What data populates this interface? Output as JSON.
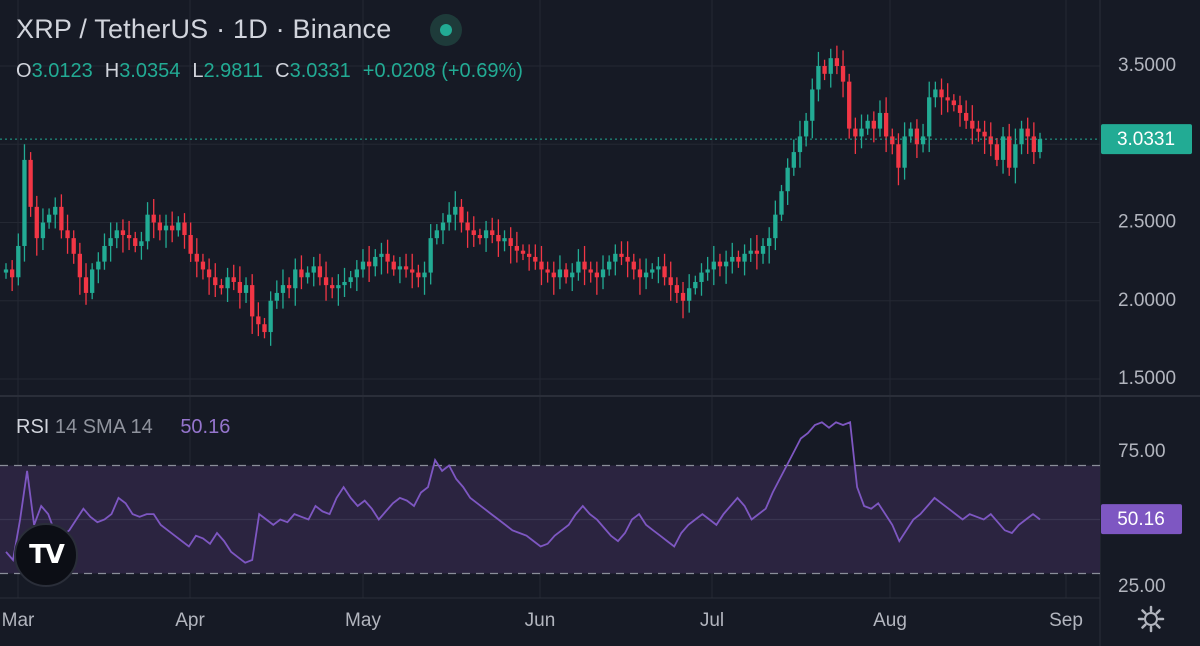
{
  "header": {
    "title": "XRP / TetherUS · 1D · Binance",
    "open_label": "O",
    "open": "3.0123",
    "high_label": "H",
    "high": "3.0354",
    "low_label": "L",
    "low": "2.9811",
    "close_label": "C",
    "close": "3.0331",
    "change": "+0.0208 (+0.69%)"
  },
  "price_badge": "3.0331",
  "rsi": {
    "name": "RSI",
    "params": "14 SMA 14",
    "value": "50.16",
    "badge": "50.16"
  },
  "icons": {
    "logo": "tradingview-logo",
    "settings": "gear-icon"
  },
  "logo_text": "TV",
  "colors": {
    "background": "#161a25",
    "up": "#22ab94",
    "down": "#f23645",
    "rsi_line": "#7e57c2",
    "rsi_band": "#2b2440",
    "grid": "#242833"
  },
  "chart_data": [
    {
      "type": "candlestick",
      "title": "XRP / TetherUS · 1D · Binance",
      "y_ticks": [
        "3.5000",
        "3.0000",
        "2.5000",
        "2.0000",
        "1.5000"
      ],
      "ylim": [
        1.45,
        3.75
      ],
      "x_ticks": [
        "Mar",
        "Apr",
        "May",
        "Jun",
        "Jul",
        "Aug",
        "Sep"
      ],
      "last_price": 3.0331,
      "grid": true,
      "close_series": [
        2.2,
        2.15,
        2.35,
        2.9,
        2.6,
        2.4,
        2.5,
        2.55,
        2.6,
        2.45,
        2.4,
        2.3,
        2.15,
        2.05,
        2.2,
        2.25,
        2.35,
        2.4,
        2.45,
        2.42,
        2.4,
        2.35,
        2.38,
        2.55,
        2.5,
        2.45,
        2.48,
        2.45,
        2.5,
        2.42,
        2.3,
        2.25,
        2.2,
        2.15,
        2.1,
        2.08,
        2.15,
        2.12,
        2.05,
        2.1,
        1.9,
        1.85,
        1.8,
        2.0,
        2.05,
        2.1,
        2.08,
        2.2,
        2.15,
        2.18,
        2.22,
        2.15,
        2.1,
        2.08,
        2.1,
        2.12,
        2.15,
        2.2,
        2.25,
        2.22,
        2.28,
        2.3,
        2.25,
        2.2,
        2.22,
        2.2,
        2.18,
        2.15,
        2.18,
        2.4,
        2.45,
        2.5,
        2.55,
        2.6,
        2.5,
        2.45,
        2.42,
        2.4,
        2.45,
        2.42,
        2.38,
        2.4,
        2.35,
        2.32,
        2.3,
        2.28,
        2.25,
        2.2,
        2.18,
        2.15,
        2.2,
        2.15,
        2.18,
        2.25,
        2.2,
        2.18,
        2.15,
        2.2,
        2.25,
        2.3,
        2.28,
        2.25,
        2.2,
        2.15,
        2.18,
        2.2,
        2.22,
        2.15,
        2.1,
        2.05,
        2.0,
        2.08,
        2.12,
        2.18,
        2.2,
        2.25,
        2.22,
        2.25,
        2.28,
        2.25,
        2.3,
        2.32,
        2.3,
        2.35,
        2.4,
        2.55,
        2.7,
        2.85,
        2.95,
        3.05,
        3.15,
        3.35,
        3.5,
        3.45,
        3.55,
        3.5,
        3.4,
        3.1,
        3.05,
        3.1,
        3.15,
        3.1,
        3.2,
        3.05,
        3.0,
        2.85,
        3.05,
        3.1,
        3.0,
        3.05,
        3.3,
        3.35,
        3.3,
        3.28,
        3.25,
        3.2,
        3.15,
        3.1,
        3.08,
        3.05,
        3.0,
        2.9,
        3.05,
        2.85,
        3.0,
        3.1,
        3.05,
        2.95,
        3.0331
      ]
    },
    {
      "type": "line",
      "series": [
        {
          "name": "RSI",
          "values": [
            38,
            35,
            50,
            68,
            48,
            55,
            52,
            45,
            44,
            46,
            50,
            54,
            51,
            49,
            50,
            52,
            58,
            56,
            52,
            51,
            52,
            52,
            48,
            46,
            44,
            42,
            40,
            44,
            43,
            41,
            45,
            42,
            38,
            36,
            34,
            35,
            52,
            50,
            48,
            50,
            49,
            52,
            51,
            50,
            55,
            53,
            52,
            58,
            62,
            58,
            55,
            57,
            54,
            50,
            53,
            56,
            58,
            57,
            55,
            60,
            62,
            72,
            68,
            70,
            65,
            62,
            58,
            56,
            54,
            52,
            50,
            48,
            46,
            45,
            44,
            42,
            40,
            41,
            44,
            46,
            48,
            52,
            55,
            52,
            50,
            47,
            44,
            42,
            45,
            50,
            52,
            48,
            46,
            44,
            42,
            40,
            45,
            48,
            50,
            52,
            50,
            48,
            52,
            55,
            58,
            55,
            50,
            52,
            54,
            60,
            65,
            70,
            75,
            80,
            82,
            85,
            86,
            84,
            86,
            85,
            86,
            62,
            55,
            54,
            56,
            52,
            48,
            42,
            46,
            50,
            52,
            55,
            58,
            56,
            54,
            52,
            50,
            52,
            51,
            50,
            52,
            49,
            46,
            45,
            48,
            50,
            52,
            50
          ]
        }
      ],
      "y_ticks": [
        "75.00",
        "25.00"
      ],
      "ylim": [
        20,
        92
      ],
      "band": [
        30,
        70
      ],
      "last_value": 50.16
    }
  ]
}
